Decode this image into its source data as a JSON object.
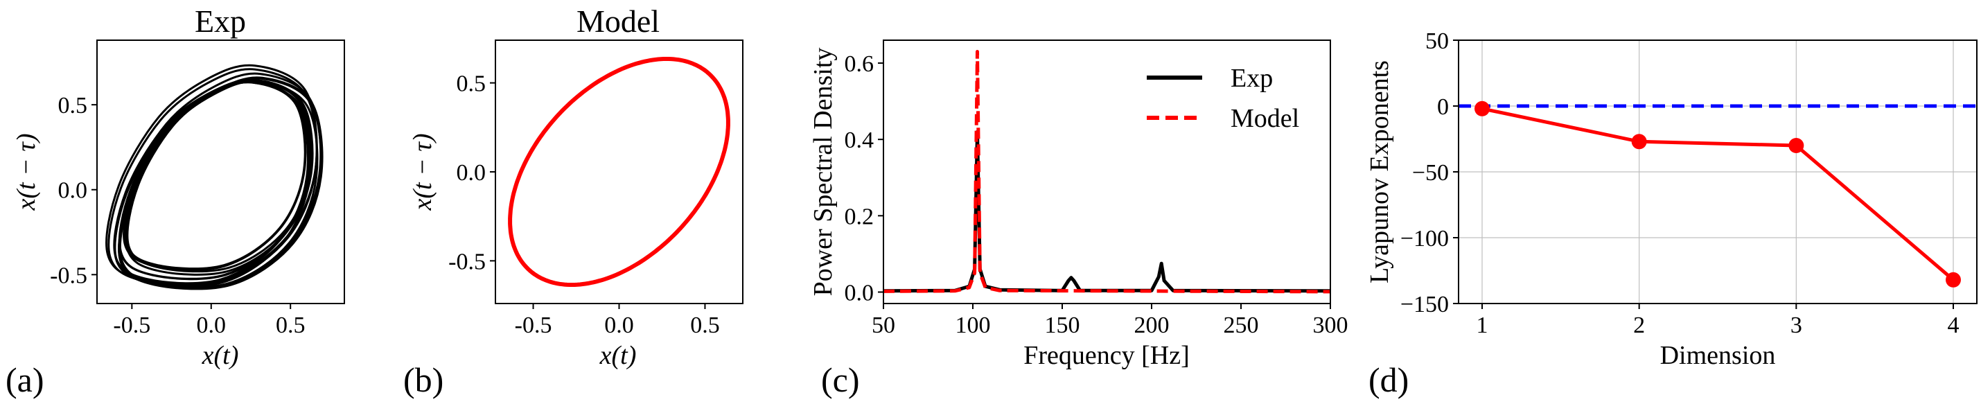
{
  "panel_labels": [
    "(a)",
    "(b)",
    "(c)",
    "(d)"
  ],
  "chart_data": [
    {
      "type": "line",
      "panel": "(a)",
      "title": "Exp",
      "xlabel": "x(t)",
      "ylabel": "x(t − τ)",
      "xlim": [
        -0.72,
        0.84
      ],
      "ylim": [
        -0.67,
        0.88
      ],
      "xticks": [
        -0.5,
        0.0,
        0.5
      ],
      "xtick_labels": [
        "-0.5",
        "0.0",
        "0.5"
      ],
      "yticks": [
        -0.5,
        0.0,
        0.5
      ],
      "ytick_labels": [
        "-0.5",
        "0.0",
        "0.5"
      ],
      "series": [
        {
          "color": "#000000",
          "kind": "phase-portrait",
          "description_points": [
            [
              0.3,
              0.7
            ],
            [
              0.62,
              0.55
            ],
            [
              0.68,
              0.1
            ],
            [
              0.5,
              -0.3
            ],
            [
              0.1,
              -0.55
            ],
            [
              -0.4,
              -0.55
            ],
            [
              -0.62,
              -0.4
            ],
            [
              -0.55,
              0.0
            ],
            [
              -0.3,
              0.4
            ],
            [
              0.0,
              0.62
            ],
            [
              0.3,
              0.7
            ]
          ]
        }
      ]
    },
    {
      "type": "line",
      "panel": "(b)",
      "title": "Model",
      "xlabel": "x(t)",
      "ylabel": "x(t − τ)",
      "xlim": [
        -0.72,
        0.72
      ],
      "ylim": [
        -0.74,
        0.74
      ],
      "xticks": [
        -0.5,
        0.0,
        0.5
      ],
      "xtick_labels": [
        "-0.5",
        "0.0",
        "0.5"
      ],
      "yticks": [
        -0.5,
        0.0,
        0.5
      ],
      "ytick_labels": [
        "-0.5",
        "0.0",
        "0.5"
      ],
      "series": [
        {
          "color": "#ff0000",
          "kind": "phase-portrait",
          "description_points": [
            [
              0.34,
              0.635
            ],
            [
              0.62,
              0.34
            ],
            [
              0.635,
              0.0
            ],
            [
              0.34,
              -0.34
            ],
            [
              -0.34,
              -0.635
            ],
            [
              -0.62,
              -0.34
            ],
            [
              -0.635,
              0.0
            ],
            [
              -0.34,
              0.34
            ],
            [
              0.34,
              0.635
            ]
          ]
        }
      ]
    },
    {
      "type": "line",
      "panel": "(c)",
      "xlabel": "Frequency [Hz]",
      "ylabel": "Power Spectral Density",
      "xlim": [
        50,
        300
      ],
      "ylim": [
        -0.03,
        0.66
      ],
      "xticks": [
        50,
        100,
        150,
        200,
        250,
        300
      ],
      "xtick_labels": [
        "50",
        "100",
        "150",
        "200",
        "250",
        "300"
      ],
      "yticks": [
        0.0,
        0.2,
        0.4,
        0.6
      ],
      "ytick_labels": [
        "0.0",
        "0.2",
        "0.4",
        "0.6"
      ],
      "legend": "top-right",
      "series": [
        {
          "name": "Exp",
          "color": "#000000",
          "style": "solid",
          "x": [
            50,
            90,
            98,
            101,
            102.5,
            104,
            107,
            115,
            150,
            153.5,
            155,
            156.5,
            160,
            200,
            204,
            205.5,
            207,
            212,
            300
          ],
          "y": [
            0.003,
            0.004,
            0.015,
            0.06,
            0.42,
            0.06,
            0.015,
            0.006,
            0.004,
            0.03,
            0.038,
            0.03,
            0.004,
            0.004,
            0.04,
            0.075,
            0.03,
            0.004,
            0.003
          ]
        },
        {
          "name": "Model",
          "color": "#ff0000",
          "style": "dashed",
          "x": [
            50,
            90,
            98,
            101,
            102.5,
            104,
            107,
            115,
            300
          ],
          "y": [
            0.002,
            0.003,
            0.012,
            0.05,
            0.63,
            0.05,
            0.012,
            0.004,
            0.001
          ]
        }
      ]
    },
    {
      "type": "line",
      "panel": "(d)",
      "xlabel": "Dimension",
      "ylabel": "Lyapunov Exponents",
      "xlim": [
        0.85,
        4.15
      ],
      "ylim": [
        -150,
        50
      ],
      "xticks": [
        1,
        2,
        3,
        4
      ],
      "xtick_labels": [
        "1",
        "2",
        "3",
        "4"
      ],
      "yticks": [
        50,
        0,
        -50,
        -100,
        -150
      ],
      "ytick_labels": [
        "50",
        "0",
        "−50",
        "−100",
        "−150"
      ],
      "grid": true,
      "reference_line": {
        "y": 0,
        "color": "#0000ff",
        "style": "dashed"
      },
      "series": [
        {
          "color": "#ff0000",
          "x": [
            1,
            2,
            3,
            4
          ],
          "y": [
            -2,
            -27,
            -30,
            -132
          ]
        }
      ]
    }
  ]
}
